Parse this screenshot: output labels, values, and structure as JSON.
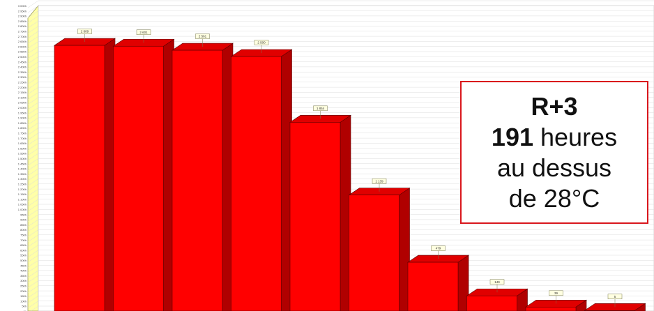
{
  "chart_data": {
    "type": "bar",
    "series": [
      {
        "values": [
          2609,
          2601,
          2561,
          2500,
          1854,
          1139,
          479,
          149,
          39,
          5
        ]
      }
    ],
    "value_labels": [
      "2 609",
      "2 601",
      "2 561",
      "2 500",
      "1 854",
      "1 139",
      "479",
      "149",
      "39",
      "5"
    ],
    "y_tick_labels": [
      "0h",
      "50h",
      "100h",
      "150h",
      "200h",
      "250h",
      "300h",
      "350h",
      "400h",
      "450h",
      "500h",
      "550h",
      "600h",
      "650h",
      "700h",
      "750h",
      "800h",
      "850h",
      "900h",
      "950h",
      "1 000h",
      "1 050h",
      "1 100h",
      "1 150h",
      "1 200h",
      "1 250h",
      "1 300h",
      "1 350h",
      "1 400h",
      "1 450h",
      "1 500h",
      "1 550h",
      "1 600h",
      "1 650h",
      "1 700h",
      "1 750h",
      "1 800h",
      "1 850h",
      "1 900h",
      "1 950h",
      "2 000h",
      "2 050h",
      "2 100h",
      "2 150h",
      "2 200h",
      "2 250h",
      "2 300h",
      "2 350h",
      "2 400h",
      "2 450h",
      "2 500h",
      "2 550h",
      "2 600h",
      "2 650h",
      "2 700h",
      "2 750h",
      "2 800h",
      "2 850h",
      "2 900h",
      "2 950h",
      "3 000h"
    ],
    "ylim": [
      0,
      3000
    ],
    "grid": true,
    "legend": "none",
    "bar_style": "3d",
    "colors": {
      "bar_front": "#ff0000",
      "bar_side": "#b00000",
      "bar_top": "#e00000",
      "wall": "#ffffa8",
      "grid": "#dcdcdc",
      "annotation_border": "#d9161c"
    }
  },
  "annotation": {
    "line1": "R+3",
    "hours_value": "191",
    "hours_unit": " heures",
    "line3": "au dessus",
    "line4": "de 28°C"
  }
}
